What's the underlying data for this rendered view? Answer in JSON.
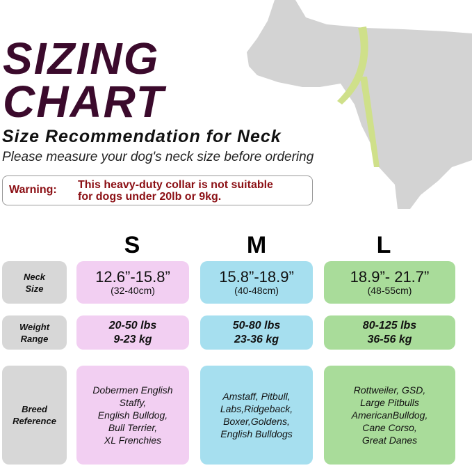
{
  "title_line1": "SIZING",
  "title_line2": "CHART",
  "subtitle": "Size Recommendation for Neck",
  "instruction": "Please measure your dog's neck size before ordering",
  "warning": {
    "label": "Warning:",
    "line1": "This heavy-duty collar is not suitable",
    "line2": "for dogs under 20lb or 9kg."
  },
  "colors": {
    "title": "#3b0a2c",
    "warning": "#8b0f14",
    "S": "#f2cff2",
    "M": "#a6dfef",
    "L": "#a9dc9a",
    "label": "#d7d7d7"
  },
  "sizes": [
    "S",
    "M",
    "L"
  ],
  "rows": {
    "neck": {
      "label1": "Neck",
      "label2": "Size",
      "values": [
        {
          "in": "12.6”-15.8”",
          "cm": "(32-40cm)"
        },
        {
          "in": "15.8”-18.9”",
          "cm": "(40-48cm)"
        },
        {
          "in": "18.9”- 21.7”",
          "cm": "(48-55cm)"
        }
      ]
    },
    "weight": {
      "label1": "Weight",
      "label2": "Range",
      "values": [
        {
          "lbs": "20-50 lbs",
          "kg": "9-23 kg"
        },
        {
          "lbs": "50-80 lbs",
          "kg": "23-36 kg"
        },
        {
          "lbs": "80-125 lbs",
          "kg": "36-56 kg"
        }
      ]
    },
    "breed": {
      "label1": "Breed",
      "label2": "Reference",
      "values": [
        [
          "Dobermen English",
          "Staffy,",
          "English Bulldog,",
          "Bull Terrier,",
          "XL Frenchies"
        ],
        [
          "Amstaff, Pitbull,",
          "Labs,Ridgeback,",
          "Boxer,Goldens,",
          "English Bulldogs"
        ],
        [
          "Rottweiler, GSD,",
          "Large Pitbulls",
          "AmericanBulldog,",
          "Cane Corso,",
          "Great Danes"
        ]
      ]
    }
  }
}
